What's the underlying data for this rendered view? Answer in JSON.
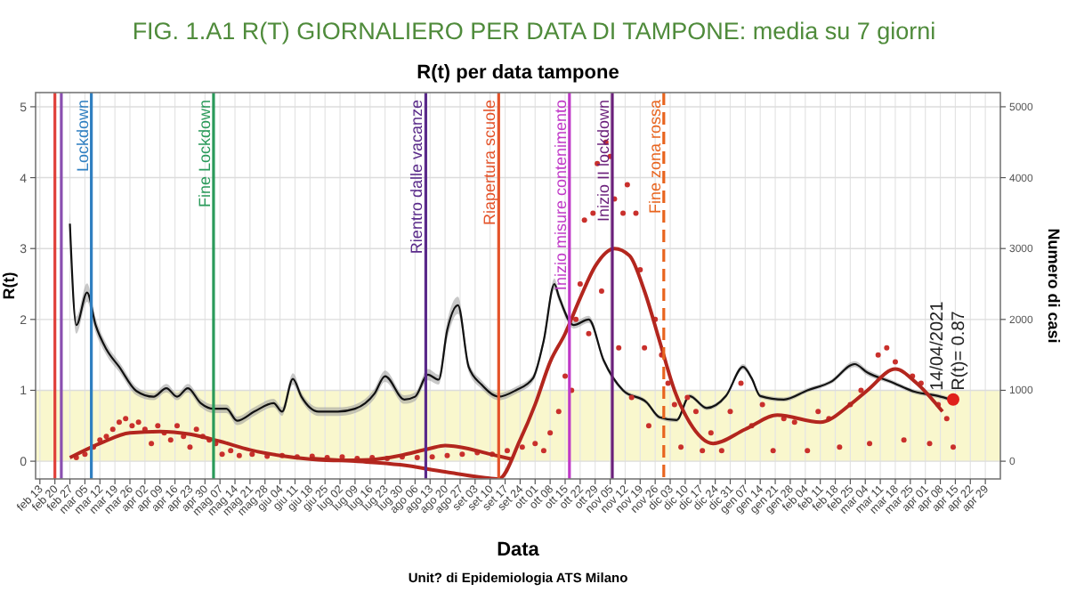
{
  "chart_data": {
    "type": "line",
    "title": "FIG. 1.A1 R(T) GIORNALIERO PER DATA DI TAMPONE: media su 7 giorni",
    "subtitle": "R(t) per data tampone",
    "xlabel": "Data",
    "ylabel": "R(t)",
    "y2label": "Numero di casi",
    "xlim": [
      "2020-02-11",
      "2021-05-06"
    ],
    "ylim": [
      -0.25,
      5.2
    ],
    "y2lim": [
      -250,
      5200
    ],
    "yticks": [
      0,
      1,
      2,
      3,
      4,
      5
    ],
    "y2ticks": [
      0,
      1000,
      2000,
      3000,
      4000,
      5000
    ],
    "xticks": [
      {
        "value": "2020-02-13",
        "label": "feb 13"
      },
      {
        "value": "2020-02-20",
        "label": "feb 20"
      },
      {
        "value": "2020-02-27",
        "label": "feb 27"
      },
      {
        "value": "2020-03-05",
        "label": "mar 05"
      },
      {
        "value": "2020-03-12",
        "label": "mar 12"
      },
      {
        "value": "2020-03-19",
        "label": "mar 19"
      },
      {
        "value": "2020-03-26",
        "label": "mar 26"
      },
      {
        "value": "2020-04-02",
        "label": "apr 02"
      },
      {
        "value": "2020-04-09",
        "label": "apr 09"
      },
      {
        "value": "2020-04-16",
        "label": "apr 16"
      },
      {
        "value": "2020-04-23",
        "label": "apr 23"
      },
      {
        "value": "2020-04-30",
        "label": "apr 30"
      },
      {
        "value": "2020-05-07",
        "label": "mag 07"
      },
      {
        "value": "2020-05-14",
        "label": "mag 14"
      },
      {
        "value": "2020-05-21",
        "label": "mag 21"
      },
      {
        "value": "2020-05-28",
        "label": "mag 28"
      },
      {
        "value": "2020-06-04",
        "label": "giu 04"
      },
      {
        "value": "2020-06-11",
        "label": "giu 11"
      },
      {
        "value": "2020-06-18",
        "label": "giu 18"
      },
      {
        "value": "2020-06-25",
        "label": "giu 25"
      },
      {
        "value": "2020-07-02",
        "label": "lug 02"
      },
      {
        "value": "2020-07-09",
        "label": "lug 09"
      },
      {
        "value": "2020-07-16",
        "label": "lug 16"
      },
      {
        "value": "2020-07-23",
        "label": "lug 23"
      },
      {
        "value": "2020-07-30",
        "label": "lug 30"
      },
      {
        "value": "2020-08-06",
        "label": "ago 06"
      },
      {
        "value": "2020-08-13",
        "label": "ago 13"
      },
      {
        "value": "2020-08-20",
        "label": "ago 20"
      },
      {
        "value": "2020-08-27",
        "label": "ago 27"
      },
      {
        "value": "2020-09-03",
        "label": "set 03"
      },
      {
        "value": "2020-09-10",
        "label": "set 10"
      },
      {
        "value": "2020-09-17",
        "label": "set 17"
      },
      {
        "value": "2020-09-24",
        "label": "set 24"
      },
      {
        "value": "2020-10-01",
        "label": "ott 01"
      },
      {
        "value": "2020-10-08",
        "label": "ott 08"
      },
      {
        "value": "2020-10-15",
        "label": "ott 15"
      },
      {
        "value": "2020-10-22",
        "label": "ott 22"
      },
      {
        "value": "2020-10-29",
        "label": "ott 29"
      },
      {
        "value": "2020-11-05",
        "label": "nov 05"
      },
      {
        "value": "2020-11-12",
        "label": "nov 12"
      },
      {
        "value": "2020-11-19",
        "label": "nov 19"
      },
      {
        "value": "2020-11-26",
        "label": "nov 26"
      },
      {
        "value": "2020-12-03",
        "label": "dic 03"
      },
      {
        "value": "2020-12-10",
        "label": "dic 10"
      },
      {
        "value": "2020-12-17",
        "label": "dic 17"
      },
      {
        "value": "2020-12-24",
        "label": "dic 24"
      },
      {
        "value": "2020-12-31",
        "label": "dic 31"
      },
      {
        "value": "2021-01-07",
        "label": "gen 07"
      },
      {
        "value": "2021-01-14",
        "label": "gen 14"
      },
      {
        "value": "2021-01-21",
        "label": "gen 21"
      },
      {
        "value": "2021-01-28",
        "label": "gen 28"
      },
      {
        "value": "2021-02-04",
        "label": "feb 04"
      },
      {
        "value": "2021-02-11",
        "label": "feb 11"
      },
      {
        "value": "2021-02-18",
        "label": "feb 18"
      },
      {
        "value": "2021-02-25",
        "label": "feb 25"
      },
      {
        "value": "2021-03-04",
        "label": "mar 04"
      },
      {
        "value": "2021-03-11",
        "label": "mar 11"
      },
      {
        "value": "2021-03-18",
        "label": "mar 18"
      },
      {
        "value": "2021-03-25",
        "label": "mar 25"
      },
      {
        "value": "2021-04-01",
        "label": "apr 01"
      },
      {
        "value": "2021-04-08",
        "label": "apr 08"
      },
      {
        "value": "2021-04-15",
        "label": "apr 15"
      },
      {
        "value": "2021-04-22",
        "label": "apr 22"
      },
      {
        "value": "2021-04-29",
        "label": "apr 29"
      }
    ],
    "grid": true,
    "bands": [
      {
        "axis": "y",
        "from": 0,
        "to": 1,
        "color": "#f8f6c4"
      }
    ],
    "ref_lines": [
      {
        "axis": "x",
        "value": "2020-02-20",
        "color": "#e0403a"
      },
      {
        "axis": "x",
        "value": "2020-02-23",
        "color": "#8a4fb0"
      },
      {
        "axis": "x",
        "value": "2020-03-08",
        "label": "Lockdown",
        "color": "#2f7fc1"
      },
      {
        "axis": "x",
        "value": "2020-05-04",
        "label": "Fine Lockdown",
        "color": "#2a9a5a"
      },
      {
        "axis": "x",
        "value": "2020-08-11",
        "label": "Rientro dalle vacanze",
        "color": "#5a2a8a"
      },
      {
        "axis": "x",
        "value": "2020-09-14",
        "label": "Riapertura scuole",
        "color": "#e4532a"
      },
      {
        "axis": "x",
        "value": "2020-10-17",
        "label": "Inizio misure contenimento",
        "color": "#c03ac8"
      },
      {
        "axis": "x",
        "value": "2020-11-06",
        "label": "Inizio II lockdown",
        "color": "#6a1f7a"
      },
      {
        "axis": "x",
        "value": "2020-11-30",
        "label": "Fine zona rossa",
        "color": "#e8641e",
        "line_style": "dashed"
      }
    ],
    "series": [
      {
        "color": "#111111",
        "x": [
          "2020-02-27",
          "2020-03-01",
          "2020-03-06",
          "2020-03-10",
          "2020-03-15",
          "2020-03-21",
          "2020-03-29",
          "2020-04-06",
          "2020-04-12",
          "2020-04-17",
          "2020-04-22",
          "2020-04-28",
          "2020-05-04",
          "2020-05-10",
          "2020-05-15",
          "2020-05-23",
          "2020-06-01",
          "2020-06-05",
          "2020-06-10",
          "2020-06-14",
          "2020-06-22",
          "2020-07-01",
          "2020-07-09",
          "2020-07-18",
          "2020-07-23",
          "2020-08-01",
          "2020-08-06",
          "2020-08-12",
          "2020-08-17",
          "2020-08-21",
          "2020-08-26",
          "2020-08-31",
          "2020-09-06",
          "2020-09-14",
          "2020-09-22",
          "2020-09-30",
          "2020-10-05",
          "2020-10-10",
          "2020-10-12",
          "2020-10-19",
          "2020-10-26",
          "2020-11-02",
          "2020-11-11",
          "2020-11-22",
          "2020-11-28",
          "2020-12-06",
          "2020-12-12",
          "2020-12-20",
          "2020-12-29",
          "2021-01-06",
          "2021-01-10",
          "2021-01-14",
          "2021-01-25",
          "2021-02-05",
          "2021-02-16",
          "2021-02-27",
          "2021-03-05",
          "2021-03-16",
          "2021-03-27",
          "2021-04-07",
          "2021-04-13"
        ],
        "values": [
          3.35,
          1.92,
          2.38,
          1.92,
          1.58,
          1.33,
          0.99,
          0.91,
          1.03,
          0.91,
          1.03,
          0.82,
          0.74,
          0.74,
          0.57,
          0.7,
          0.82,
          0.7,
          1.16,
          0.91,
          0.7,
          0.7,
          0.74,
          0.95,
          1.2,
          0.87,
          0.91,
          1.22,
          1.15,
          1.85,
          2.2,
          1.33,
          1.08,
          0.91,
          1.0,
          1.17,
          1.7,
          2.5,
          2.33,
          1.92,
          2.0,
          1.42,
          1.0,
          0.83,
          0.62,
          0.58,
          0.92,
          0.75,
          0.92,
          1.33,
          1.17,
          0.92,
          0.87,
          1.0,
          1.12,
          1.37,
          1.25,
          1.12,
          0.98,
          0.92,
          0.87
        ],
        "lower": [
          3.2,
          1.8,
          2.25,
          1.82,
          1.5,
          1.26,
          0.93,
          0.86,
          0.97,
          0.86,
          0.97,
          0.76,
          0.68,
          0.68,
          0.51,
          0.64,
          0.76,
          0.64,
          1.08,
          0.85,
          0.64,
          0.64,
          0.68,
          0.88,
          1.12,
          0.81,
          0.85,
          1.14,
          1.08,
          1.72,
          2.08,
          1.26,
          1.02,
          0.86,
          0.95,
          1.12,
          1.64,
          2.42,
          2.26,
          1.87,
          1.95,
          1.38,
          0.97,
          0.8,
          0.59,
          0.55,
          0.89,
          0.72,
          0.89,
          1.29,
          1.13,
          0.89,
          0.84,
          0.97,
          1.09,
          1.33,
          1.21,
          1.09,
          0.95,
          0.89,
          0.84
        ],
        "upper": [
          3.5,
          2.04,
          2.51,
          2.02,
          1.66,
          1.4,
          1.05,
          0.96,
          1.09,
          0.96,
          1.09,
          0.88,
          0.8,
          0.8,
          0.63,
          0.76,
          0.88,
          0.76,
          1.24,
          0.97,
          0.76,
          0.76,
          0.8,
          1.02,
          1.28,
          0.93,
          0.97,
          1.3,
          1.22,
          1.98,
          2.32,
          1.4,
          1.14,
          0.96,
          1.05,
          1.22,
          1.76,
          2.58,
          2.4,
          1.97,
          2.05,
          1.46,
          1.03,
          0.86,
          0.65,
          0.61,
          0.95,
          0.78,
          0.95,
          1.37,
          1.21,
          0.95,
          0.9,
          1.03,
          1.15,
          1.41,
          1.29,
          1.15,
          1.01,
          0.95,
          0.9
        ]
      },
      {
        "type": "scatter",
        "axis": "y2",
        "color": "#c9302c",
        "marker": "circle",
        "x": [
          "2020-03-01",
          "2020-03-05",
          "2020-03-09",
          "2020-03-12",
          "2020-03-15",
          "2020-03-18",
          "2020-03-21",
          "2020-03-24",
          "2020-03-27",
          "2020-03-30",
          "2020-04-02",
          "2020-04-05",
          "2020-04-08",
          "2020-04-11",
          "2020-04-14",
          "2020-04-17",
          "2020-04-20",
          "2020-04-23",
          "2020-04-26",
          "2020-04-29",
          "2020-05-02",
          "2020-05-05",
          "2020-05-08",
          "2020-05-12",
          "2020-05-16",
          "2020-05-22",
          "2020-05-29",
          "2020-06-05",
          "2020-06-12",
          "2020-06-19",
          "2020-06-26",
          "2020-07-03",
          "2020-07-10",
          "2020-07-17",
          "2020-07-24",
          "2020-07-31",
          "2020-08-07",
          "2020-08-14",
          "2020-08-21",
          "2020-08-28",
          "2020-09-04",
          "2020-09-11",
          "2020-09-18",
          "2020-09-25",
          "2020-10-01",
          "2020-10-05",
          "2020-10-08",
          "2020-10-12",
          "2020-10-15",
          "2020-10-18",
          "2020-10-20",
          "2020-10-22",
          "2020-10-24",
          "2020-10-26",
          "2020-10-28",
          "2020-10-30",
          "2020-11-01",
          "2020-11-03",
          "2020-11-05",
          "2020-11-07",
          "2020-11-09",
          "2020-11-11",
          "2020-11-13",
          "2020-11-15",
          "2020-11-17",
          "2020-11-19",
          "2020-11-21",
          "2020-11-23",
          "2020-11-26",
          "2020-11-29",
          "2020-12-02",
          "2020-12-05",
          "2020-12-08",
          "2020-12-11",
          "2020-12-15",
          "2020-12-18",
          "2020-12-22",
          "2020-12-27",
          "2020-12-31",
          "2021-01-05",
          "2021-01-10",
          "2021-01-15",
          "2021-01-20",
          "2021-01-25",
          "2021-01-30",
          "2021-02-05",
          "2021-02-10",
          "2021-02-15",
          "2021-02-20",
          "2021-02-25",
          "2021-03-02",
          "2021-03-06",
          "2021-03-10",
          "2021-03-14",
          "2021-03-18",
          "2021-03-22",
          "2021-03-26",
          "2021-03-30",
          "2021-04-03",
          "2021-04-07",
          "2021-04-11",
          "2021-04-14"
        ],
        "values": [
          50,
          100,
          200,
          300,
          350,
          450,
          550,
          600,
          500,
          550,
          450,
          250,
          500,
          400,
          300,
          500,
          350,
          200,
          450,
          350,
          300,
          250,
          100,
          150,
          80,
          100,
          70,
          80,
          60,
          70,
          50,
          60,
          40,
          50,
          40,
          60,
          50,
          60,
          80,
          100,
          120,
          100,
          150,
          200,
          250,
          150,
          400,
          700,
          1200,
          1000,
          2000,
          2500,
          3400,
          1800,
          3500,
          4200,
          2400,
          4500,
          4300,
          3700,
          1600,
          3500,
          3900,
          900,
          3500,
          2700,
          1600,
          500,
          2000,
          1500,
          1100,
          800,
          200,
          900,
          700,
          150,
          400,
          150,
          700,
          1100,
          500,
          800,
          150,
          600,
          550,
          150,
          700,
          600,
          200,
          800,
          1000,
          250,
          1500,
          1600,
          1400,
          300,
          1200,
          1100,
          250,
          800,
          600,
          200
        ]
      },
      {
        "type": "line",
        "axis": "y2",
        "color": "#b3261e",
        "x": [
          "2020-02-27",
          "2020-03-12",
          "2020-03-26",
          "2020-04-09",
          "2020-04-23",
          "2020-05-07",
          "2020-05-21",
          "2020-06-04",
          "2020-06-18",
          "2020-07-02",
          "2020-07-16",
          "2020-07-30",
          "2020-08-13",
          "2020-08-20",
          "2020-08-27",
          "2020-09-10",
          "2020-09-20"
        ],
        "values": [
          50,
          250,
          400,
          420,
          380,
          280,
          160,
          80,
          30,
          10,
          20,
          80,
          180,
          220,
          200,
          100,
          30
        ]
      },
      {
        "type": "line",
        "axis": "y2",
        "color": "#b3261e",
        "x": [
          "2020-06-18",
          "2020-07-09",
          "2020-07-30",
          "2020-08-20",
          "2020-09-07",
          "2020-09-14",
          "2020-09-24",
          "2020-10-01",
          "2020-10-08",
          "2020-10-15",
          "2020-10-22",
          "2020-10-29",
          "2020-11-07",
          "2020-11-14",
          "2020-11-21",
          "2020-11-28",
          "2020-12-05",
          "2020-12-12",
          "2020-12-23",
          "2021-01-07",
          "2021-01-22",
          "2021-02-11",
          "2021-02-25",
          "2021-03-05",
          "2021-03-18",
          "2021-03-28",
          "2021-04-09"
        ],
        "values": [
          40,
          0,
          -50,
          -150,
          -230,
          -250,
          300,
          800,
          1400,
          1800,
          2300,
          2750,
          3000,
          2900,
          2400,
          1700,
          1000,
          550,
          250,
          450,
          650,
          550,
          800,
          1000,
          1300,
          1100,
          700
        ]
      },
      {
        "type": "scatter",
        "color": "#e0201c",
        "marker": "circle",
        "x": [
          "2021-04-14"
        ],
        "values": [
          0.87
        ]
      }
    ],
    "annotations": [
      {
        "text": "14/04/2021",
        "x": "2021-04-14",
        "y": 0.87
      },
      {
        "text": "R(t)= 0.87",
        "x": "2021-04-14",
        "y": 0.87
      },
      "Unit? di Epidemiologia ATS Milano"
    ]
  }
}
